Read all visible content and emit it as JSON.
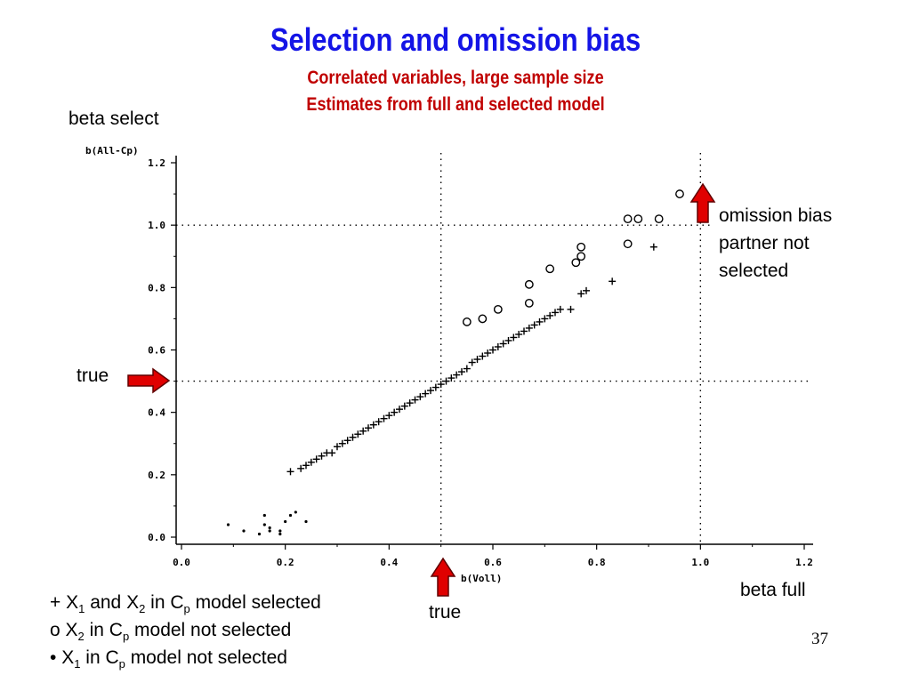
{
  "slide": {
    "title": "Selection and omission bias",
    "subtitle1": "Correlated variables, large sample size",
    "subtitle2": "Estimates from full and selected model",
    "label_beta_select": "beta select",
    "label_beta_full": "beta full",
    "label_true_left": "true",
    "label_true_bottom": "true",
    "omission": [
      "omission bias",
      "partner not",
      "selected"
    ],
    "page_number": "37",
    "legend": {
      "l1_sym": "+",
      "l1_a": "X",
      "l1_a_sub": "1",
      "l1_and": " and X",
      "l1_b_sub": "2",
      "l1_in": " in C",
      "l1_p": "p",
      "l1_rest": " model selected",
      "l2_sym": "o",
      "l2_a": " X",
      "l2_a_sub": "2",
      "l2_in": " in C",
      "l2_p": "p",
      "l2_rest": " model not selected",
      "l3_sym": "•",
      "l3_a": " X",
      "l3_a_sub": "1",
      "l3_in": " in C",
      "l3_p": "p",
      "l3_rest": " model not selected"
    }
  },
  "colors": {
    "title": "#1414e6",
    "subtitle": "#c00000",
    "arrow": "#e00000"
  },
  "chart_data": {
    "type": "scatter",
    "title": "",
    "xlabel": "b(Voll)",
    "ylabel": "b(All-Cp)",
    "xlim": [
      0.0,
      1.2
    ],
    "ylim": [
      0.0,
      1.2
    ],
    "xticks": [
      "0.0",
      "0.2",
      "0.4",
      "0.6",
      "0.8",
      "1.0",
      "1.2"
    ],
    "yticks": [
      "0.0",
      "0.2",
      "0.4",
      "0.6",
      "0.8",
      "1.0",
      "1.2"
    ],
    "reference_lines": {
      "x_true": 0.5,
      "y_true": 0.5,
      "x_omit": 1.0,
      "y_omit": 1.0
    },
    "grid": false,
    "series": [
      {
        "marker": "plus",
        "points": [
          [
            0.21,
            0.21
          ],
          [
            0.23,
            0.22
          ],
          [
            0.24,
            0.23
          ],
          [
            0.25,
            0.24
          ],
          [
            0.26,
            0.25
          ],
          [
            0.27,
            0.26
          ],
          [
            0.28,
            0.27
          ],
          [
            0.29,
            0.27
          ],
          [
            0.3,
            0.29
          ],
          [
            0.31,
            0.3
          ],
          [
            0.32,
            0.31
          ],
          [
            0.33,
            0.32
          ],
          [
            0.34,
            0.33
          ],
          [
            0.35,
            0.34
          ],
          [
            0.36,
            0.35
          ],
          [
            0.37,
            0.36
          ],
          [
            0.38,
            0.37
          ],
          [
            0.39,
            0.38
          ],
          [
            0.4,
            0.39
          ],
          [
            0.41,
            0.4
          ],
          [
            0.42,
            0.41
          ],
          [
            0.43,
            0.42
          ],
          [
            0.44,
            0.43
          ],
          [
            0.45,
            0.44
          ],
          [
            0.46,
            0.45
          ],
          [
            0.47,
            0.46
          ],
          [
            0.48,
            0.47
          ],
          [
            0.49,
            0.48
          ],
          [
            0.5,
            0.49
          ],
          [
            0.51,
            0.5
          ],
          [
            0.52,
            0.51
          ],
          [
            0.53,
            0.52
          ],
          [
            0.54,
            0.53
          ],
          [
            0.55,
            0.54
          ],
          [
            0.56,
            0.56
          ],
          [
            0.57,
            0.57
          ],
          [
            0.58,
            0.58
          ],
          [
            0.59,
            0.59
          ],
          [
            0.6,
            0.6
          ],
          [
            0.61,
            0.61
          ],
          [
            0.62,
            0.62
          ],
          [
            0.63,
            0.63
          ],
          [
            0.64,
            0.64
          ],
          [
            0.65,
            0.65
          ],
          [
            0.66,
            0.66
          ],
          [
            0.67,
            0.67
          ],
          [
            0.68,
            0.68
          ],
          [
            0.69,
            0.69
          ],
          [
            0.7,
            0.7
          ],
          [
            0.71,
            0.71
          ],
          [
            0.72,
            0.72
          ],
          [
            0.73,
            0.73
          ],
          [
            0.75,
            0.73
          ],
          [
            0.77,
            0.78
          ],
          [
            0.78,
            0.79
          ],
          [
            0.83,
            0.82
          ],
          [
            0.91,
            0.93
          ]
        ]
      },
      {
        "marker": "circle",
        "points": [
          [
            0.55,
            0.69
          ],
          [
            0.58,
            0.7
          ],
          [
            0.61,
            0.73
          ],
          [
            0.67,
            0.75
          ],
          [
            0.67,
            0.81
          ],
          [
            0.71,
            0.86
          ],
          [
            0.76,
            0.88
          ],
          [
            0.77,
            0.9
          ],
          [
            0.77,
            0.93
          ],
          [
            0.86,
            0.94
          ],
          [
            0.86,
            1.02
          ],
          [
            0.88,
            1.02
          ],
          [
            0.92,
            1.02
          ],
          [
            0.96,
            1.1
          ]
        ]
      },
      {
        "marker": "dot",
        "points": [
          [
            0.09,
            0.04
          ],
          [
            0.12,
            0.02
          ],
          [
            0.15,
            0.01
          ],
          [
            0.16,
            0.07
          ],
          [
            0.16,
            0.04
          ],
          [
            0.17,
            0.03
          ],
          [
            0.17,
            0.02
          ],
          [
            0.19,
            0.02
          ],
          [
            0.19,
            0.01
          ],
          [
            0.2,
            0.05
          ],
          [
            0.21,
            0.07
          ],
          [
            0.22,
            0.08
          ],
          [
            0.24,
            0.05
          ]
        ]
      }
    ]
  }
}
